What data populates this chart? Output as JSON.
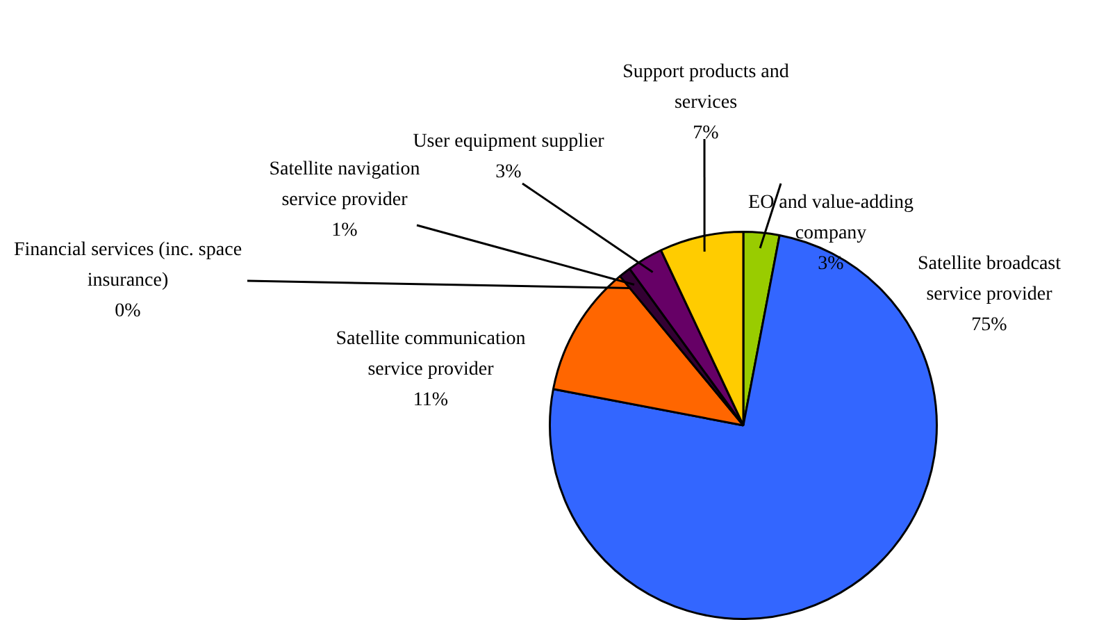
{
  "chart_data": {
    "type": "pie",
    "categories": [
      "EO and value-adding company",
      "Satellite broadcast service provider",
      "Satellite communication service provider",
      "Financial services (inc. space insurance)",
      "Satellite navigation service provider",
      "User equipment supplier",
      "Support products and services"
    ],
    "values": [
      3,
      75,
      11,
      0,
      1,
      3,
      7
    ],
    "value_labels": [
      "3%",
      "75%",
      "11%",
      "0%",
      "1%",
      "3%",
      "7%"
    ],
    "colors": [
      "#99cc00",
      "#3366ff",
      "#ff6600",
      "#ff0000",
      "#330033",
      "#660066",
      "#ffcc00"
    ],
    "legend": false
  }
}
